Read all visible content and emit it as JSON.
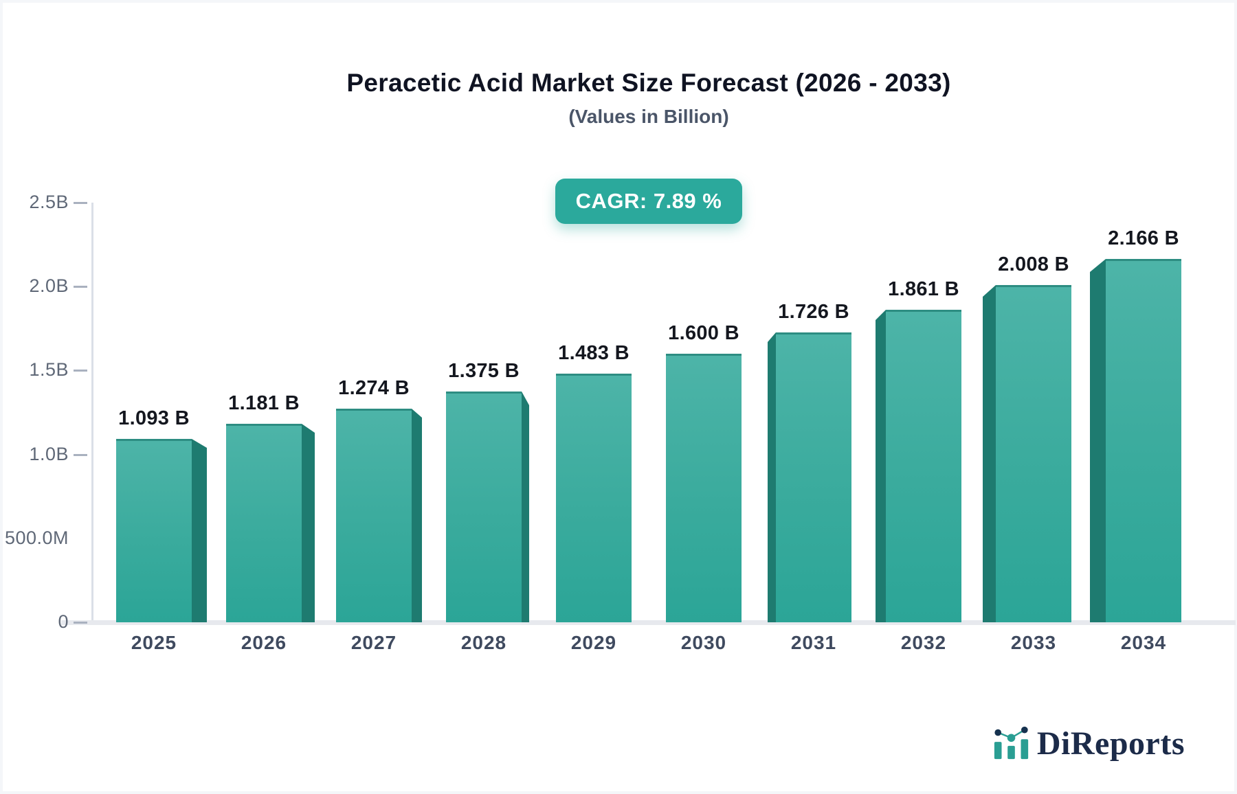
{
  "header": {
    "title": "Peracetic Acid Market Size Forecast (2026 - 2033)",
    "subtitle": "(Values in Billion)",
    "cagr_badge": "CAGR: 7.89 %"
  },
  "chart_data": {
    "type": "bar",
    "title": "Peracetic Acid Market Size Forecast (2026 - 2033)",
    "subtitle": "(Values in Billion)",
    "categories": [
      "2025",
      "2026",
      "2027",
      "2028",
      "2029",
      "2030",
      "2031",
      "2032",
      "2033",
      "2034"
    ],
    "values": [
      1.093,
      1.181,
      1.274,
      1.375,
      1.483,
      1.6,
      1.726,
      1.861,
      2.008,
      2.166
    ],
    "value_labels": [
      "1.093 B",
      "1.181 B",
      "1.274 B",
      "1.375 B",
      "1.483 B",
      "1.600 B",
      "1.726 B",
      "1.861 B",
      "2.008 B",
      "2.166 B"
    ],
    "cagr_percent": 7.89,
    "ylim": [
      0,
      2.5
    ],
    "y_axis": {
      "tick_labels": [
        "2.5B",
        "2.0B",
        "1.5B",
        "1.0B",
        "500.0M",
        "0"
      ],
      "tick_values": [
        2.5,
        2.0,
        1.5,
        1.0,
        0.5,
        0
      ],
      "tick_dash": [
        true,
        true,
        true,
        true,
        false,
        true
      ]
    },
    "grid": false,
    "legend": false,
    "bar_style": "3d-perspective-to-center",
    "colors": {
      "bar_face_top": "#4db4a8",
      "bar_face_bottom": "#2ba597",
      "bar_top_edge": "#2d8d82",
      "bar_side": "#1e7b70",
      "badge_bg": "#2ba99c",
      "axis": "#dbdfe7",
      "baseline": "#e7e9ee",
      "tick_text": "#5f6877",
      "x_text": "#3f4a5f",
      "value_text": "#14171f"
    }
  },
  "branding": {
    "logo_text": "DiReports"
  }
}
